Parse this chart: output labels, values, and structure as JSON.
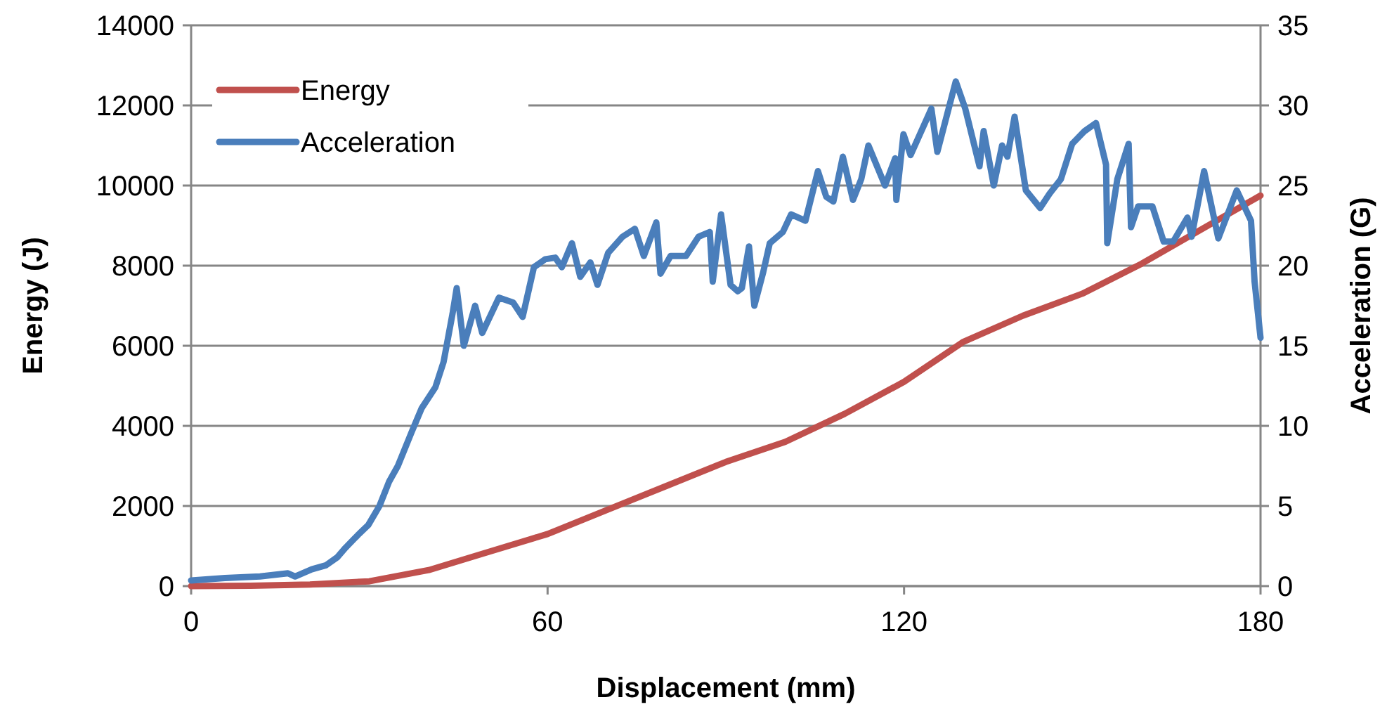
{
  "chart_data": {
    "type": "line",
    "xlabel": "Displacement (mm)",
    "ylabel": "Energy (J)",
    "y2label": "Acceleration (G)",
    "xlim": [
      0,
      180
    ],
    "xticks": [
      0,
      60,
      120,
      180
    ],
    "ylim": [
      0,
      14000
    ],
    "yticks": [
      0,
      2000,
      4000,
      6000,
      8000,
      10000,
      12000,
      14000
    ],
    "y2lim": [
      0,
      35
    ],
    "y2ticks": [
      0,
      5,
      10,
      15,
      20,
      25,
      30,
      35
    ],
    "grid": "y",
    "legend": "top left",
    "marker": "none",
    "line_style": "solid",
    "series": [
      {
        "name": "Energy",
        "color": "#c0504d",
        "x": [
          0,
          10,
          20,
          30,
          40,
          50,
          60,
          70,
          80,
          90,
          100,
          110,
          120,
          130,
          140,
          150,
          160,
          170,
          180
        ],
        "values": [
          0,
          10,
          40,
          120,
          400,
          850,
          1300,
          1900,
          2500,
          3100,
          3600,
          4300,
          5100,
          6100,
          6750,
          7300,
          8050,
          8900,
          9750
        ]
      },
      {
        "name": "Acceleration",
        "color": "#4a7ebb",
        "axis": "y2",
        "x": [
          0,
          5.7,
          11.6,
          16.3,
          17.5,
          20.3,
          22.7,
          24.6,
          26,
          28.1,
          29.8,
          31.7,
          33.3,
          34.8,
          37.1,
          38.8,
          41.1,
          42.5,
          44,
          44.7,
          45.9,
          47.8,
          49,
          51.8,
          54.2,
          55.8,
          57.7,
          59.6,
          61.3,
          62.4,
          64.1,
          65.5,
          67.2,
          68.4,
          70.2,
          72.6,
          74.7,
          76.2,
          78.3,
          79,
          80.7,
          83.3,
          85.4,
          87.3,
          87.8,
          89.2,
          90.8,
          92,
          92.7,
          93.9,
          94.8,
          96.3,
          97.4,
          99.6,
          101,
          103.4,
          105.5,
          106.9,
          108.1,
          109.7,
          111.4,
          112.8,
          114,
          116.8,
          118.5,
          118.7,
          119.9,
          121.1,
          124.6,
          125.6,
          128.7,
          130.3,
          132.7,
          133.4,
          135.1,
          136.5,
          137.4,
          138.6,
          140.5,
          142.9,
          144.5,
          146.4,
          148.3,
          150.4,
          152.3,
          154,
          154.2,
          155.9,
          157.8,
          158.2,
          159.4,
          161.8,
          163.7,
          165.3,
          167.7,
          168.4,
          170.5,
          172.9,
          176,
          178.4,
          179,
          180
        ],
        "values": [
          0.35,
          0.5,
          0.6,
          0.8,
          0.6,
          1.05,
          1.3,
          1.8,
          2.4,
          3.2,
          3.8,
          5,
          6.5,
          7.5,
          9.6,
          11.1,
          12.4,
          14,
          17,
          18.6,
          15,
          17.5,
          15.8,
          18,
          17.7,
          16.8,
          19.9,
          20.4,
          20.5,
          19.9,
          21.4,
          19.3,
          20.2,
          18.8,
          20.8,
          21.8,
          22.3,
          20.6,
          22.7,
          19.5,
          20.6,
          20.6,
          21.8,
          22.1,
          19,
          23.2,
          18.8,
          18.4,
          18.6,
          21.2,
          17.5,
          19.6,
          21.4,
          22.1,
          23.2,
          22.8,
          25.9,
          24.3,
          24,
          26.8,
          24.1,
          25.4,
          27.5,
          25,
          26.7,
          24.1,
          28.2,
          26.9,
          29.8,
          27.1,
          31.5,
          29.8,
          26.2,
          28.4,
          25,
          27.5,
          26.8,
          29.3,
          24.7,
          23.6,
          24.5,
          25.4,
          27.6,
          28.4,
          28.9,
          26.3,
          21.4,
          25.4,
          27.6,
          22.4,
          23.7,
          23.7,
          21.5,
          21.5,
          23,
          21.8,
          25.9,
          21.7,
          24.7,
          22.8,
          19,
          15.5
        ]
      }
    ]
  }
}
